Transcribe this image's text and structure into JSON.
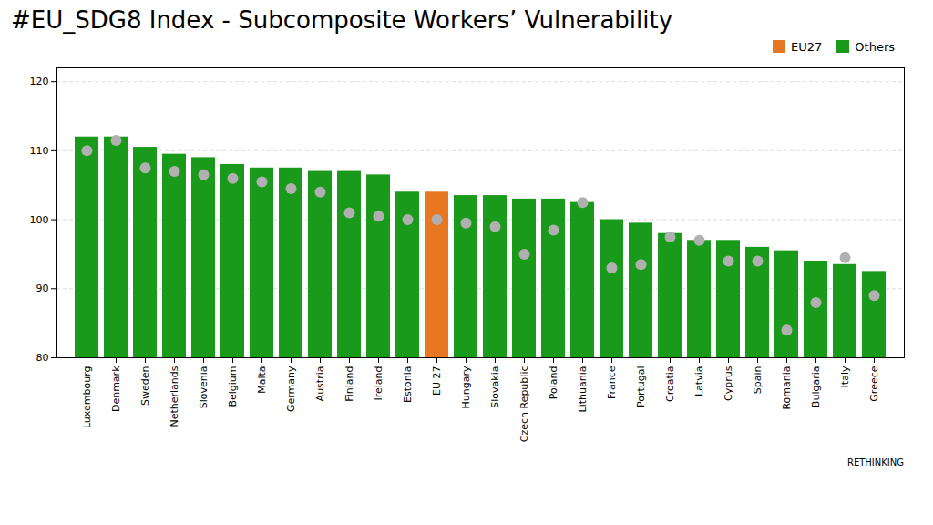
{
  "chart_data": {
    "type": "bar",
    "title": "#EU_SDG8 Index - Subcomposite Workers’ Vulnerability",
    "categories": [
      "Luxembourg",
      "Denmark",
      "Sweden",
      "Netherlands",
      "Slovenia",
      "Belgium",
      "Malta",
      "Germany",
      "Austria",
      "Finland",
      "Ireland",
      "Estonia",
      "EU 27",
      "Hungary",
      "Slovakia",
      "Czech Republic",
      "Poland",
      "Lithuania",
      "France",
      "Portugal",
      "Croatia",
      "Latvia",
      "Cyprus",
      "Spain",
      "Romania",
      "Bulgaria",
      "Italy",
      "Greece"
    ],
    "series": [
      {
        "name": "EU27",
        "type": "bar",
        "color": "#e87722",
        "values": [
          null,
          null,
          null,
          null,
          null,
          null,
          null,
          null,
          null,
          null,
          null,
          null,
          104.0,
          null,
          null,
          null,
          null,
          null,
          null,
          null,
          null,
          null,
          null,
          null,
          null,
          null,
          null,
          null
        ]
      },
      {
        "name": "Others",
        "type": "bar",
        "color": "#1a9a1a",
        "values": [
          112.0,
          112.0,
          110.5,
          109.5,
          109.0,
          108.0,
          107.5,
          107.5,
          107.0,
          107.0,
          106.5,
          104.0,
          null,
          103.5,
          103.5,
          103.0,
          103.0,
          102.5,
          100.0,
          99.5,
          98.0,
          97.0,
          97.0,
          96.0,
          95.5,
          94.0,
          93.5,
          92.5
        ]
      },
      {
        "type": "scatter",
        "color": "#b0b0b0",
        "values": [
          110.0,
          111.5,
          107.5,
          107.0,
          106.5,
          106.0,
          105.5,
          104.5,
          104.0,
          101.0,
          100.5,
          100.0,
          100.0,
          99.5,
          99.0,
          95.0,
          98.5,
          102.5,
          93.0,
          93.5,
          97.5,
          97.0,
          94.0,
          94.0,
          84.0,
          88.0,
          94.5,
          89.0
        ]
      }
    ],
    "ylim": [
      80,
      122
    ],
    "yticks": [
      80,
      90,
      100,
      110,
      120
    ],
    "grid": true,
    "legend": "upper right",
    "annotations": [
      "RETHINKING"
    ]
  }
}
